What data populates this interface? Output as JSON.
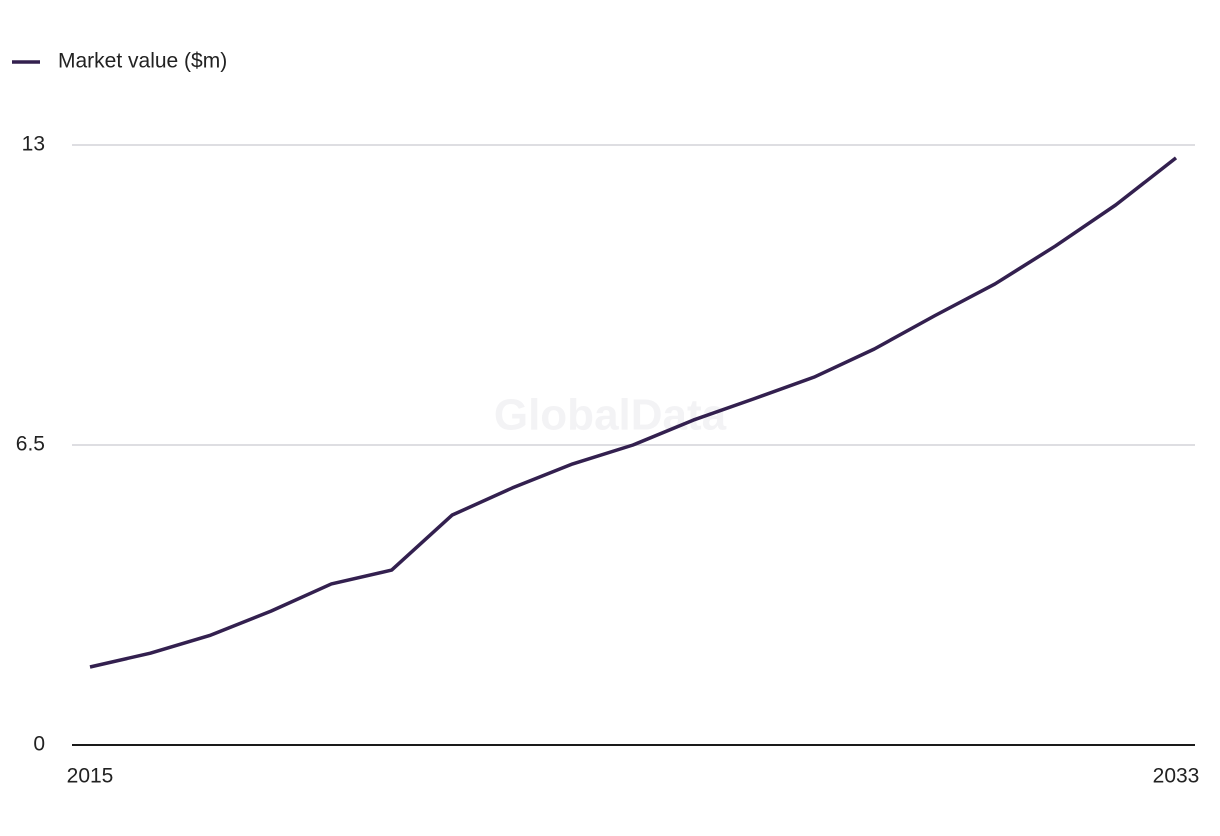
{
  "chart_data": {
    "type": "line",
    "watermark": "GlobalData",
    "x": [
      2015,
      2016,
      2017,
      2018,
      2019,
      2020,
      2021,
      2022,
      2023,
      2024,
      2025,
      2026,
      2027,
      2028,
      2029,
      2030,
      2031,
      2032,
      2033
    ],
    "series": [
      {
        "name": "Market value ($m)",
        "color": "#33204f",
        "values": [
          1.69,
          1.99,
          2.38,
          2.9,
          3.49,
          3.79,
          4.98,
          5.57,
          6.09,
          6.5,
          7.04,
          7.5,
          7.97,
          8.58,
          9.3,
          9.99,
          10.81,
          11.7,
          12.72
        ]
      }
    ],
    "xlim": [
      2015,
      2033
    ],
    "xticks": [
      2015,
      2033
    ],
    "ylim": [
      0,
      13
    ],
    "yticks": [
      0,
      6.5,
      13
    ],
    "grid": true,
    "legend": "top-left"
  }
}
